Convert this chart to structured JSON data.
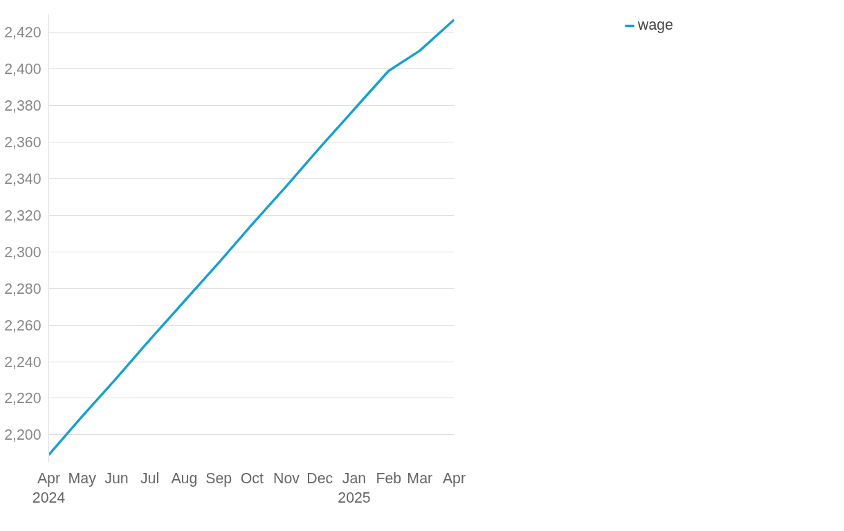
{
  "chart_data": {
    "type": "line",
    "x": [
      "2024-04",
      "2024-05",
      "2024-06",
      "2024-07",
      "2024-08",
      "2024-09",
      "2024-10",
      "2024-11",
      "2024-12",
      "2025-01",
      "2025-02",
      "2025-03",
      "2025-04"
    ],
    "series": [
      {
        "name": "wage",
        "color": "#18a1cd",
        "values": [
          2189,
          2210,
          2231,
          2252,
          2273,
          2294,
          2315,
          2336,
          2357,
          2378,
          2399,
          2410,
          2427
        ]
      }
    ],
    "xlim": [
      "2024-04",
      "2025-04"
    ],
    "ylim": [
      2185,
      2430
    ],
    "xticks": [
      {
        "value": "2024-04",
        "label": "Apr\n2024"
      },
      {
        "value": "2024-05",
        "label": "May"
      },
      {
        "value": "2024-06",
        "label": "Jun"
      },
      {
        "value": "2024-07",
        "label": "Jul"
      },
      {
        "value": "2024-08",
        "label": "Aug"
      },
      {
        "value": "2024-09",
        "label": "Sep"
      },
      {
        "value": "2024-10",
        "label": "Oct"
      },
      {
        "value": "2024-11",
        "label": "Nov"
      },
      {
        "value": "2024-12",
        "label": "Dec"
      },
      {
        "value": "2025-01",
        "label": "Jan\n2025"
      },
      {
        "value": "2025-02",
        "label": "Feb"
      },
      {
        "value": "2025-03",
        "label": "Mar"
      },
      {
        "value": "2025-04",
        "label": "Apr"
      }
    ],
    "yticks": [
      {
        "value": 2200,
        "label": "2,200"
      },
      {
        "value": 2220,
        "label": "2,220"
      },
      {
        "value": 2240,
        "label": "2,240"
      },
      {
        "value": 2260,
        "label": "2,260"
      },
      {
        "value": 2280,
        "label": "2,280"
      },
      {
        "value": 2300,
        "label": "2,300"
      },
      {
        "value": 2320,
        "label": "2,320"
      },
      {
        "value": 2340,
        "label": "2,340"
      },
      {
        "value": 2360,
        "label": "2,360"
      },
      {
        "value": 2380,
        "label": "2,380"
      },
      {
        "value": 2400,
        "label": "2,400"
      },
      {
        "value": 2420,
        "label": "2,420"
      }
    ],
    "grid": "y",
    "legend": "top right",
    "marker": "none",
    "line_style": "solid"
  }
}
